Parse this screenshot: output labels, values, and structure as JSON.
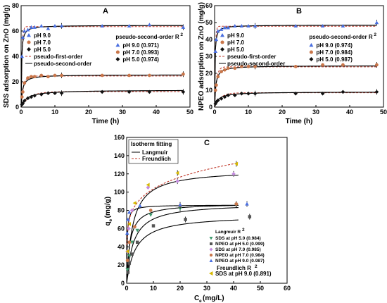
{
  "chart_data": [
    {
      "type": "scatter",
      "title": "A",
      "xlabel": "Time (h)",
      "ylabel": "SDS adsorption on ZnO (mg/g)",
      "xlim": [
        0,
        50
      ],
      "ylim": [
        0,
        80
      ],
      "xticks": [
        0,
        10,
        20,
        30,
        40,
        50
      ],
      "yticks": [
        0,
        20,
        40,
        60,
        80
      ],
      "legend_title": "pseudo-second-order R",
      "legend_title_sup": "2",
      "fit_legend": [
        "pseudo-first-order",
        "pseudo-second-order"
      ],
      "series": [
        {
          "name": "pH 9.0",
          "r2_label": "pH 9.0  (0.971)",
          "color": "#4a6fe0",
          "marker": "triangle",
          "x": [
            0.25,
            0.5,
            1,
            2,
            3,
            4,
            6,
            8,
            10,
            12,
            24,
            32,
            38,
            48
          ],
          "y": [
            40,
            55,
            60,
            61,
            63,
            63,
            64,
            62,
            64,
            64,
            64,
            64,
            65,
            63
          ],
          "eq": 64.5,
          "k2": 0.12,
          "eq1": 63.5,
          "k1": 4.0
        },
        {
          "name": "pH 7.0",
          "r2_label": "pH 7.0  (0.993)",
          "color": "#c9764a",
          "marker": "circle",
          "x": [
            0.25,
            0.5,
            1,
            2,
            3,
            4,
            6,
            8,
            10,
            12,
            24,
            32,
            38,
            48
          ],
          "y": [
            8,
            12,
            19,
            23,
            24,
            24,
            25,
            24,
            25,
            25,
            25,
            25,
            25,
            26
          ],
          "eq": 25.5,
          "k2": 0.1,
          "eq1": 24.5,
          "k1": 1.5
        },
        {
          "name": "pH 5.0",
          "r2_label": "pH 5.0  (0.974)",
          "color": "#111111",
          "marker": "diamond",
          "x": [
            0.25,
            0.5,
            1,
            2,
            3,
            4,
            6,
            8,
            10,
            12,
            24,
            32,
            38,
            48
          ],
          "y": [
            2,
            3,
            5,
            7,
            8,
            9,
            10,
            11,
            11,
            11,
            12,
            12,
            12,
            12
          ],
          "eq": 13.5,
          "k2": 0.045,
          "eq1": 12.2,
          "k1": 0.4
        }
      ]
    },
    {
      "type": "scatter",
      "title": "B",
      "xlabel": "Time (h)",
      "ylabel": "NPEO adsorption on ZnO (mg/g)",
      "xlim": [
        0,
        50
      ],
      "ylim": [
        0,
        60
      ],
      "xticks": [
        0,
        10,
        20,
        30,
        40,
        50
      ],
      "yticks": [
        0,
        10,
        20,
        30,
        40,
        50,
        60
      ],
      "legend_title": "pseudo-second-order R",
      "legend_title_sup": "2",
      "fit_legend": [
        "pseudo-first-order",
        "pseudo-second-order"
      ],
      "series": [
        {
          "name": "pH 9.0",
          "r2_label": "pH 9.0  (0.974)",
          "color": "#4a6fe0",
          "marker": "triangle",
          "x": [
            0.25,
            0.5,
            1,
            2,
            3,
            4,
            6,
            8,
            10,
            12,
            24,
            32,
            38,
            48
          ],
          "y": [
            33,
            40,
            45,
            46,
            47,
            47,
            48,
            48,
            48,
            48,
            48,
            48,
            48,
            50
          ],
          "eq": 48.5,
          "k2": 0.2,
          "eq1": 47.8,
          "k1": 5.0
        },
        {
          "name": "pH 7.0",
          "r2_label": "pH 7.0  (0.984)",
          "color": "#c9764a",
          "marker": "circle",
          "x": [
            0.25,
            0.5,
            1,
            2,
            3,
            4,
            6,
            8,
            10,
            12,
            24,
            32,
            38,
            48
          ],
          "y": [
            10,
            13,
            18,
            21,
            22,
            23,
            23,
            24,
            24,
            24,
            24,
            25,
            25,
            25
          ],
          "eq": 24.5,
          "k2": 0.12,
          "eq1": 23.8,
          "k1": 1.8
        },
        {
          "name": "pH 5.0",
          "r2_label": "pH 5.0  (0.987)",
          "color": "#111111",
          "marker": "diamond",
          "x": [
            0.25,
            0.5,
            1,
            2,
            3,
            4,
            6,
            8,
            10,
            12,
            24,
            32,
            38,
            48
          ],
          "y": [
            2,
            3,
            4,
            5,
            6,
            7,
            7,
            8,
            8,
            8,
            8,
            8,
            9,
            9
          ],
          "eq": 9.0,
          "k2": 0.1,
          "eq1": 8.5,
          "k1": 0.6
        }
      ]
    },
    {
      "type": "scatter",
      "title": "C",
      "xlabel": "C",
      "xlabel_sub": "e",
      "xlabel_unit": " (mg/L)",
      "ylabel": "q",
      "ylabel_sub": "e",
      "ylabel_unit": " (mg/g)",
      "xlim": [
        0,
        60
      ],
      "ylim": [
        0,
        160
      ],
      "xticks": [
        0,
        10,
        20,
        30,
        40,
        50,
        60
      ],
      "yticks": [
        0,
        20,
        40,
        60,
        80,
        100,
        120,
        140,
        160
      ],
      "iso_legend_title": "Isotherm fitting",
      "iso_legend": [
        "Langmuir",
        "Freundlich"
      ],
      "lang_title": "Langmuir R",
      "lang_title_sup": "2",
      "freund_title": "Freundlich R",
      "freund_title_sup": "2",
      "series": [
        {
          "name": "SDS at pH 5.0",
          "r2_label": "SDS at pH 5.0 (0.984)",
          "color": "#3f9b6e",
          "marker": "tri-down",
          "x": [
            0.3,
            1,
            2,
            4,
            9,
            20,
            41
          ],
          "y": [
            15,
            30,
            45,
            58,
            75,
            82,
            86
          ],
          "model": "L",
          "qm": 88,
          "K": 0.4
        },
        {
          "name": "NPEO at pH 5.0",
          "r2_label": "NPEO at pH 5.0 (0.999)",
          "color": "#555555",
          "marker": "square",
          "x": [
            0.5,
            1,
            2,
            4,
            10,
            22,
            46
          ],
          "y": [
            12,
            22,
            32,
            45,
            63,
            70,
            73
          ],
          "model": "L",
          "qm": 75,
          "K": 0.3
        },
        {
          "name": "SDS at pH 7.0",
          "r2_label": "SDS at pH 7.0 (0.985)",
          "color": "#c58ce0",
          "marker": "diamond",
          "x": [
            0.3,
            0.8,
            2,
            8,
            19,
            40
          ],
          "y": [
            35,
            60,
            80,
            105,
            112,
            120
          ],
          "model": "L",
          "qm": 125,
          "K": 0.45
        },
        {
          "name": "NPEO at pH 7.0",
          "r2_label": "NPEO at pH 7.0 (0.984)",
          "color": "#c9764a",
          "marker": "circle",
          "x": [
            0.3,
            1,
            3,
            9,
            20,
            41
          ],
          "y": [
            25,
            45,
            62,
            80,
            85,
            87
          ],
          "model": "L",
          "qm": 88,
          "K": 0.8
        },
        {
          "name": "NPEO at pH 9.0",
          "r2_label": "NPEO at pH 9.0 (0.987)",
          "color": "#4a6fe0",
          "marker": "triangle",
          "x": [
            0.2,
            0.5,
            1,
            5,
            20,
            45
          ],
          "y": [
            55,
            70,
            78,
            85,
            86,
            87
          ],
          "model": "L",
          "qm": 86,
          "K": 5.0
        },
        {
          "name": "SDS at pH 9.0",
          "r2_label": "SDS at pH 9.0 (0.891)",
          "color": "#d6b800",
          "marker": "tri-left",
          "x": [
            0.3,
            1,
            3,
            8,
            19,
            41
          ],
          "y": [
            35,
            65,
            88,
            108,
            121,
            131
          ],
          "model": "F",
          "Kf": 70,
          "n": 0.17
        }
      ]
    }
  ]
}
